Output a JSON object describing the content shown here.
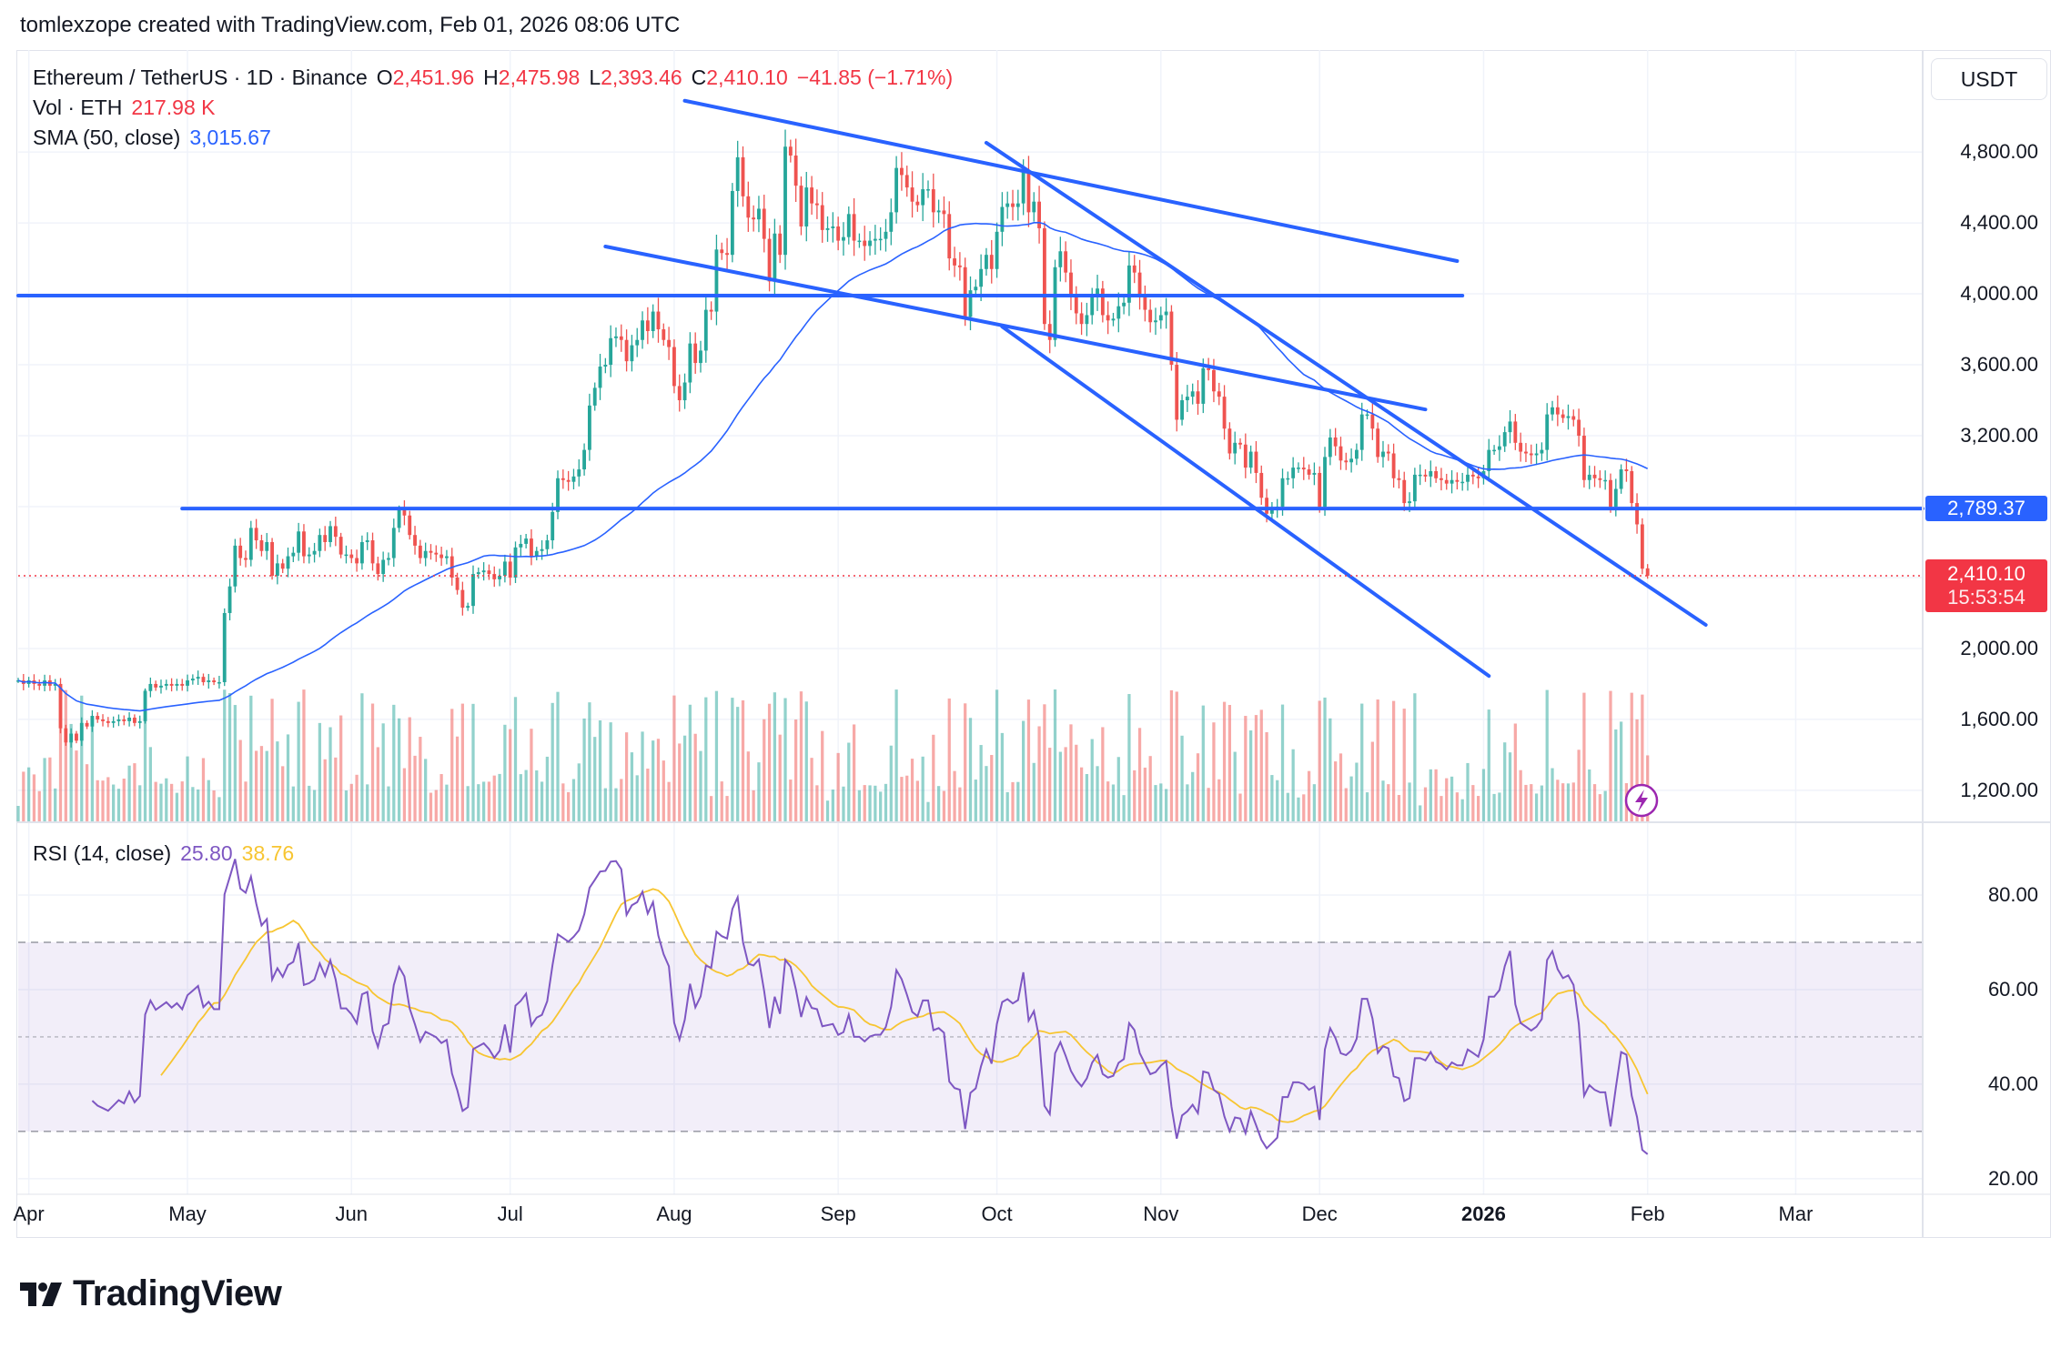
{
  "header": {
    "attribution": "tomlexzope created with TradingView.com, Feb 01, 2026 08:06 UTC"
  },
  "legend": {
    "symbol": "Ethereum / TetherUS · 1D · Binance",
    "o_label": "O",
    "o": "2,451.96",
    "h_label": "H",
    "h": "2,475.98",
    "l_label": "L",
    "l": "2,393.46",
    "c_label": "C",
    "c": "2,410.10",
    "change": "−41.85 (−1.71%)",
    "vol_label": "Vol · ETH",
    "vol": "217.98 K",
    "sma_label": "SMA (50, close)",
    "sma": "3,015.67"
  },
  "rsi_legend": {
    "label": "RSI (14, close)",
    "rsi": "25.80",
    "rsi_ma": "38.76"
  },
  "price_axis": {
    "currency": "USDT",
    "ticks": [
      {
        "value": 4800,
        "label": "4,800.00"
      },
      {
        "value": 4400,
        "label": "4,400.00"
      },
      {
        "value": 4000,
        "label": "4,000.00"
      },
      {
        "value": 3600,
        "label": "3,600.00"
      },
      {
        "value": 3200,
        "label": "3,200.00"
      },
      {
        "value": 2000,
        "label": "2,000.00"
      },
      {
        "value": 1600,
        "label": "1,600.00"
      },
      {
        "value": 1200,
        "label": "1,200.00"
      }
    ],
    "grid_values": [
      4800,
      4400,
      4000,
      3600,
      3200,
      2800,
      2400,
      2000,
      1600,
      1200
    ]
  },
  "markers": {
    "level": "2,789.37",
    "level_value": 2789.37,
    "last_price": "2,410.10",
    "last_value": 2410.1,
    "countdown": "15:53:54"
  },
  "time_axis": [
    {
      "date": "2025-04-01",
      "label": "Apr"
    },
    {
      "date": "2025-05-01",
      "label": "May"
    },
    {
      "date": "2025-06-01",
      "label": "Jun"
    },
    {
      "date": "2025-07-01",
      "label": "Jul"
    },
    {
      "date": "2025-08-01",
      "label": "Aug"
    },
    {
      "date": "2025-09-01",
      "label": "Sep"
    },
    {
      "date": "2025-10-01",
      "label": "Oct"
    },
    {
      "date": "2025-11-01",
      "label": "Nov"
    },
    {
      "date": "2025-12-01",
      "label": "Dec"
    },
    {
      "date": "2026-01-01",
      "label": "2026",
      "bold": true
    },
    {
      "date": "2026-02-01",
      "label": "Feb"
    },
    {
      "date": "2026-03-01",
      "label": "Mar"
    }
  ],
  "rsi_axis": [
    {
      "value": 80,
      "label": "80.00"
    },
    {
      "value": 60,
      "label": "60.00"
    },
    {
      "value": 40,
      "label": "40.00"
    },
    {
      "value": 20,
      "label": "20.00"
    }
  ],
  "logo": "TradingView",
  "colors": {
    "up": "#26a69a",
    "down": "#ef5350",
    "sma": "#2962ff",
    "drawing": "#2962ff",
    "rsi": "#7e57c2",
    "rsi_ma": "#f7c531",
    "last_price": "#f23645",
    "rsi_band": "#7e57c2"
  },
  "chart_data": {
    "type": "candlestick",
    "interval": "1D",
    "first_date": "2025-03-30",
    "xlim": [
      "2025-03-30",
      "2026-03-25"
    ],
    "ylim": [
      1020,
      5375
    ],
    "close": [
      1820,
      1800,
      1820,
      1800,
      1790,
      1820,
      1790,
      1800,
      1550,
      1470,
      1520,
      1480,
      1580,
      1560,
      1620,
      1600,
      1590,
      1580,
      1590,
      1600,
      1590,
      1610,
      1580,
      1590,
      1760,
      1800,
      1780,
      1790,
      1800,
      1790,
      1800,
      1790,
      1820,
      1830,
      1840,
      1810,
      1820,
      1810,
      1810,
      2200,
      2350,
      2580,
      2510,
      2500,
      2680,
      2610,
      2550,
      2600,
      2410,
      2480,
      2450,
      2520,
      2540,
      2660,
      2520,
      2530,
      2550,
      2640,
      2600,
      2690,
      2630,
      2530,
      2530,
      2510,
      2480,
      2600,
      2610,
      2480,
      2420,
      2500,
      2510,
      2680,
      2780,
      2750,
      2640,
      2580,
      2510,
      2550,
      2540,
      2530,
      2510,
      2520,
      2400,
      2330,
      2230,
      2240,
      2420,
      2430,
      2440,
      2420,
      2390,
      2410,
      2490,
      2400,
      2570,
      2590,
      2620,
      2520,
      2550,
      2560,
      2610,
      2770,
      2960,
      2950,
      2940,
      2970,
      3010,
      3120,
      3370,
      3470,
      3590,
      3600,
      3750,
      3760,
      3740,
      3620,
      3710,
      3740,
      3850,
      3790,
      3900,
      3800,
      3740,
      3700,
      3480,
      3400,
      3500,
      3720,
      3610,
      3680,
      3910,
      3900,
      4250,
      4230,
      4220,
      4580,
      4770,
      4550,
      4430,
      4420,
      4480,
      4310,
      4070,
      4340,
      4220,
      4830,
      4780,
      4610,
      4380,
      4600,
      4510,
      4500,
      4360,
      4370,
      4380,
      4300,
      4320,
      4450,
      4300,
      4300,
      4270,
      4300,
      4310,
      4310,
      4350,
      4460,
      4710,
      4670,
      4600,
      4520,
      4500,
      4590,
      4590,
      4460,
      4470,
      4450,
      4200,
      4160,
      4150,
      3870,
      4020,
      4040,
      4140,
      4220,
      4140,
      4350,
      4490,
      4510,
      4490,
      4510,
      4690,
      4460,
      4520,
      4370,
      3830,
      3740,
      4150,
      4240,
      4120,
      3980,
      3890,
      3830,
      3880,
      3980,
      4030,
      3880,
      3850,
      3860,
      3930,
      3950,
      4160,
      4120,
      3980,
      3910,
      3840,
      3850,
      3880,
      3900,
      3600,
      3290,
      3400,
      3420,
      3450,
      3380,
      3580,
      3570,
      3450,
      3420,
      3240,
      3100,
      3160,
      3150,
      3020,
      3110,
      2990,
      2850,
      2760,
      2780,
      2800,
      2960,
      2960,
      3020,
      3020,
      3010,
      2980,
      2990,
      2800,
      3080,
      3190,
      3140,
      3060,
      3050,
      3070,
      3120,
      3320,
      3320,
      3240,
      3080,
      3110,
      3100,
      2960,
      2950,
      2820,
      2830,
      2980,
      2980,
      2970,
      3000,
      2960,
      2950,
      2930,
      2950,
      2940,
      2940,
      2980,
      2970,
      2960,
      3000,
      3120,
      3120,
      3140,
      3220,
      3280,
      3160,
      3110,
      3100,
      3090,
      3100,
      3120,
      3320,
      3360,
      3320,
      3300,
      3310,
      3290,
      3200,
      2950,
      2980,
      2960,
      2950,
      2950,
      2800,
      2900,
      3010,
      3000,
      2820,
      2700,
      2450,
      2410.1
    ],
    "last_bar": {
      "open": 2451.96,
      "high": 2475.98,
      "low": 2393.46,
      "close": 2410.1
    },
    "sma_period": 50,
    "rsi_period": 14,
    "rsi_ma_period": 14,
    "rsi_ylim": [
      16.7,
      95.4
    ],
    "rsi_levels": [
      70,
      50,
      30
    ],
    "drawings": [
      {
        "name": "upper-resistance-trendline",
        "from": {
          "date": "2025-08-03",
          "price": 5089
        },
        "to": {
          "date": "2025-12-27",
          "price": 4185
        }
      },
      {
        "name": "mid-descending-trendline",
        "from": {
          "date": "2025-07-19",
          "price": 4267
        },
        "to": {
          "date": "2025-12-21",
          "price": 3348
        }
      },
      {
        "name": "horizontal-level-4000",
        "from": {
          "date": "2025-03-30",
          "price": 3990
        },
        "to": {
          "date": "2025-12-28",
          "price": 3990
        }
      },
      {
        "name": "steep-descending-trendline",
        "from": {
          "date": "2025-09-29",
          "price": 4852
        },
        "to": {
          "date": "2026-02-12",
          "price": 2133
        }
      },
      {
        "name": "lower-channel-trendline",
        "from": {
          "date": "2025-10-02",
          "price": 3815
        },
        "to": {
          "date": "2026-01-02",
          "price": 1845
        }
      },
      {
        "name": "horizontal-level-2789",
        "from": {
          "date": "2025-04-30",
          "price": 2789.37
        },
        "to": {
          "date": "2026-03-25",
          "price": 2789.37
        }
      }
    ]
  }
}
